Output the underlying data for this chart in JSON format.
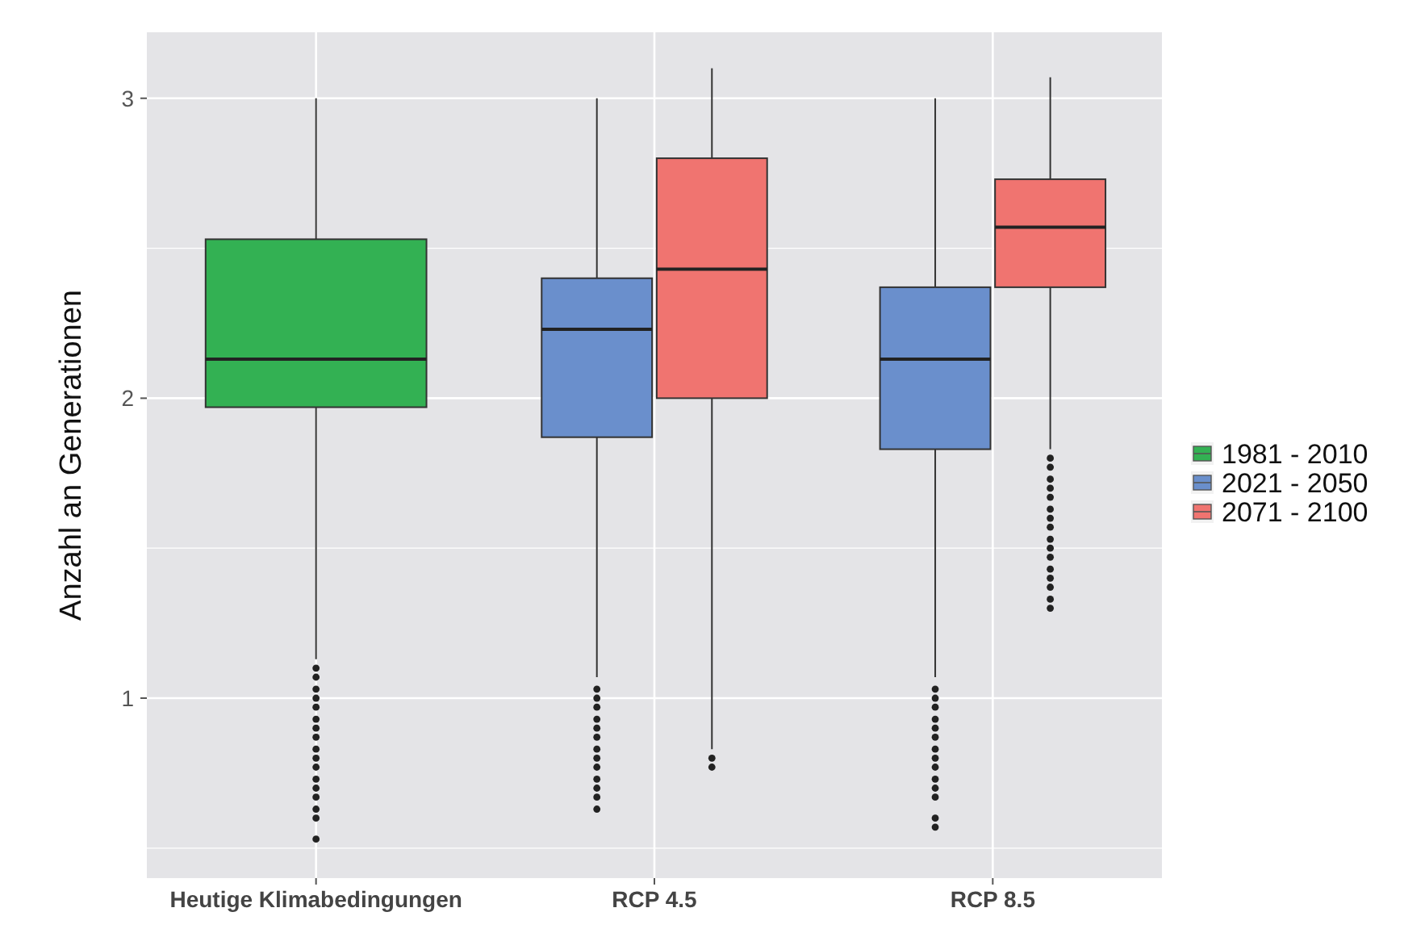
{
  "chart_data": {
    "type": "box",
    "ylabel": "Anzahl an Generationen",
    "categories": [
      "Heutige Klimabedingungen",
      "RCP 4.5",
      "RCP 8.5"
    ],
    "ylim": [
      0.4,
      3.22
    ],
    "yticks": [
      {
        "value": 0.5,
        "label": null
      },
      1,
      {
        "value": 1.5,
        "label": null
      },
      2,
      {
        "value": 2.5,
        "label": null
      },
      3
    ],
    "grid": true,
    "legend": "right",
    "series": [
      {
        "name": "1981 - 2010",
        "color": "#33b153",
        "boxes": [
          {
            "low": 1.13,
            "q1": 1.97,
            "median": 2.13,
            "q3": 2.53,
            "high": 3.0,
            "outliers": [
              1.1,
              1.07,
              1.03,
              1.0,
              0.97,
              0.93,
              0.9,
              0.87,
              0.83,
              0.8,
              0.77,
              0.73,
              0.7,
              0.67,
              0.63,
              0.6,
              0.53
            ]
          },
          null,
          null
        ]
      },
      {
        "name": "2021 - 2050",
        "color": "#6a8fcc",
        "boxes": [
          null,
          {
            "low": 1.07,
            "q1": 1.87,
            "median": 2.23,
            "q3": 2.4,
            "high": 3.0,
            "outliers": [
              1.03,
              1.0,
              0.97,
              0.93,
              0.9,
              0.87,
              0.83,
              0.8,
              0.77,
              0.73,
              0.7,
              0.67,
              0.63
            ]
          },
          {
            "low": 1.07,
            "q1": 1.83,
            "median": 2.13,
            "q3": 2.37,
            "high": 3.0,
            "outliers": [
              1.03,
              1.0,
              0.97,
              0.93,
              0.9,
              0.87,
              0.83,
              0.8,
              0.77,
              0.73,
              0.7,
              0.67,
              0.6,
              0.57
            ]
          }
        ]
      },
      {
        "name": "2071 - 2100",
        "color": "#f07470",
        "boxes": [
          null,
          {
            "low": 0.83,
            "q1": 2.0,
            "median": 2.43,
            "q3": 2.8,
            "high": 3.1,
            "outliers": [
              0.8,
              0.77
            ]
          },
          {
            "low": 1.83,
            "q1": 2.37,
            "median": 2.57,
            "q3": 2.73,
            "high": 3.07,
            "outliers": [
              1.8,
              1.77,
              1.73,
              1.7,
              1.67,
              1.63,
              1.6,
              1.57,
              1.53,
              1.5,
              1.47,
              1.43,
              1.4,
              1.37,
              1.33,
              1.3
            ]
          }
        ]
      }
    ]
  }
}
